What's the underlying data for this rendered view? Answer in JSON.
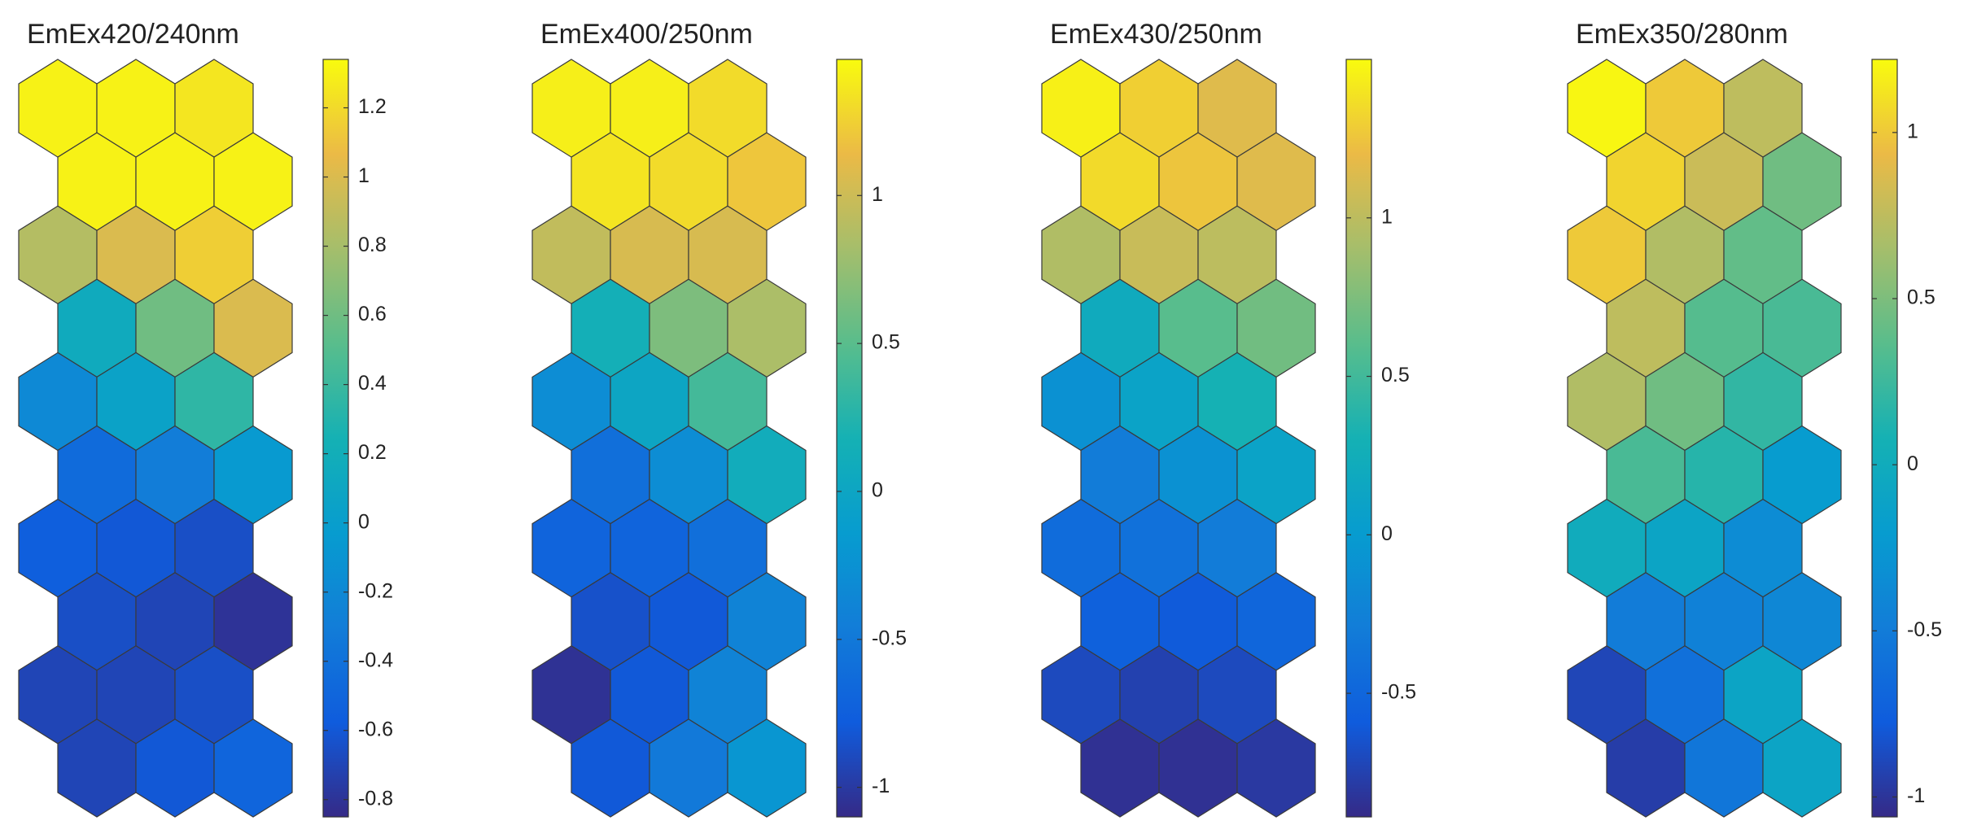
{
  "chart_data": [
    {
      "type": "som",
      "title": "EmEx420/240nm",
      "colormap": "parula",
      "values": [
        [
          1.3,
          1.3,
          1.25
        ],
        [
          1.3,
          1.3,
          1.3
        ],
        [
          0.85,
          1.0,
          1.15
        ],
        [
          0.15,
          0.6,
          1.0
        ],
        [
          -0.2,
          0.05,
          0.35
        ],
        [
          -0.45,
          -0.3,
          -0.05
        ],
        [
          -0.55,
          -0.6,
          -0.65
        ],
        [
          -0.65,
          -0.7,
          -0.8
        ],
        [
          -0.7,
          -0.7,
          -0.65
        ],
        [
          -0.7,
          -0.6,
          -0.5
        ]
      ],
      "clim": [
        -0.85,
        1.34
      ],
      "cticks": [
        -0.8,
        -0.6,
        -0.4,
        -0.2,
        0,
        0.2,
        0.4,
        0.6,
        0.8,
        1,
        1.2
      ]
    },
    {
      "type": "som",
      "title": "EmEx400/250nm",
      "colormap": "parula",
      "values": [
        [
          1.4,
          1.4,
          1.3
        ],
        [
          1.35,
          1.3,
          1.2
        ],
        [
          0.95,
          1.05,
          1.05
        ],
        [
          0.15,
          0.65,
          0.85
        ],
        [
          -0.3,
          0.0,
          0.4
        ],
        [
          -0.6,
          -0.3,
          0.1
        ],
        [
          -0.7,
          -0.7,
          -0.6
        ],
        [
          -0.85,
          -0.8,
          -0.4
        ],
        [
          -1.05,
          -0.8,
          -0.4
        ],
        [
          -0.8,
          -0.5,
          -0.2
        ]
      ],
      "clim": [
        -1.1,
        1.46
      ],
      "cticks": [
        -1,
        -0.5,
        0,
        0.5,
        1
      ]
    },
    {
      "type": "som",
      "title": "EmEx430/250nm",
      "colormap": "parula",
      "values": [
        [
          1.45,
          1.3,
          1.15
        ],
        [
          1.35,
          1.25,
          1.15
        ],
        [
          0.95,
          1.05,
          1.0
        ],
        [
          0.2,
          0.6,
          0.7
        ],
        [
          -0.1,
          0.1,
          0.3
        ],
        [
          -0.3,
          -0.1,
          0.1
        ],
        [
          -0.45,
          -0.4,
          -0.3
        ],
        [
          -0.55,
          -0.6,
          -0.5
        ],
        [
          -0.7,
          -0.75,
          -0.7
        ],
        [
          -0.85,
          -0.85,
          -0.8
        ]
      ],
      "clim": [
        -0.89,
        1.5
      ],
      "cticks": [
        -0.5,
        0,
        0.5,
        1
      ]
    },
    {
      "type": "som",
      "title": "EmEx350/280nm",
      "colormap": "parula",
      "values": [
        [
          1.2,
          1.0,
          0.75
        ],
        [
          1.05,
          0.8,
          0.45
        ],
        [
          1.0,
          0.7,
          0.4
        ],
        [
          0.75,
          0.35,
          0.3
        ],
        [
          0.7,
          0.45,
          0.2
        ],
        [
          0.3,
          0.15,
          -0.2
        ],
        [
          0.0,
          -0.1,
          -0.35
        ],
        [
          -0.5,
          -0.45,
          -0.4
        ],
        [
          -0.9,
          -0.6,
          -0.1
        ],
        [
          -0.95,
          -0.55,
          -0.1
        ]
      ],
      "clim": [
        -1.06,
        1.22
      ],
      "cticks": [
        -1,
        -0.5,
        0,
        0.5,
        1
      ]
    }
  ]
}
